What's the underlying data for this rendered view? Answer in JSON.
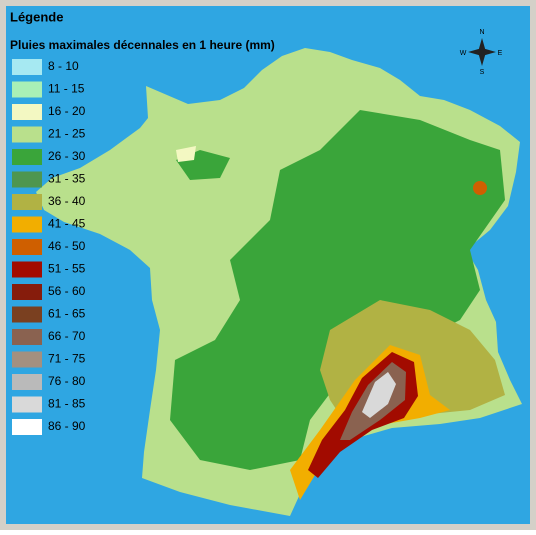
{
  "legend": {
    "title": "Légende",
    "subtitle": "Pluies maximales décennales en 1 heure (mm)",
    "classes": [
      {
        "label": "8 - 10",
        "color": "#a6e9f2"
      },
      {
        "label": "11 - 15",
        "color": "#a9f0b6"
      },
      {
        "label": "16 - 20",
        "color": "#f3f8c2"
      },
      {
        "label": "21 - 25",
        "color": "#b9e08c"
      },
      {
        "label": "26 - 30",
        "color": "#3aa53a"
      },
      {
        "label": "31 - 35",
        "color": "#4e9650"
      },
      {
        "label": "36 - 40",
        "color": "#b1b244"
      },
      {
        "label": "41 - 45",
        "color": "#f2ae00"
      },
      {
        "label": "46 - 50",
        "color": "#cf5f00"
      },
      {
        "label": "51 - 55",
        "color": "#a20b00"
      },
      {
        "label": "56 - 60",
        "color": "#861c0c"
      },
      {
        "label": "61 - 65",
        "color": "#7a4020"
      },
      {
        "label": "66 - 70",
        "color": "#8a6250"
      },
      {
        "label": "71 - 75",
        "color": "#a39080"
      },
      {
        "label": "76 - 80",
        "color": "#bababa"
      },
      {
        "label": "81 - 85",
        "color": "#d9d9d9"
      },
      {
        "label": "86 - 90",
        "color": "#ffffff"
      }
    ]
  },
  "compass": {
    "n": "N",
    "s": "S",
    "e": "E",
    "w": "W"
  }
}
